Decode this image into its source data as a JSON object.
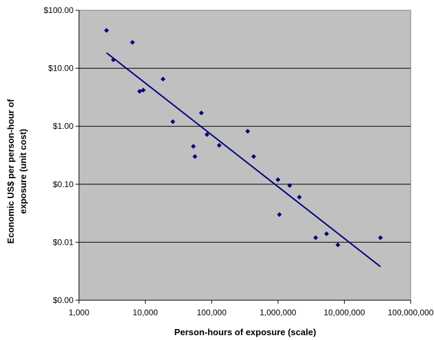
{
  "chart_data": {
    "type": "scatter",
    "xlabel": "Person-hours of exposure (scale)",
    "ylabel_line1": "Economic US$ per person-hour of",
    "ylabel_line2": "exposure (unit cost)",
    "x_scale": "log",
    "y_scale": "log",
    "xlim": [
      1000,
      100000000
    ],
    "ylim_labels_note": "bottom label reads $0.00 at the 0.001 level",
    "x_ticks": [
      "1,000",
      "10,000",
      "100,000",
      "1,000,000",
      "10,000,000",
      "100,000,000"
    ],
    "y_ticks": [
      "$0.00",
      "$0.01",
      "$0.10",
      "$1.00",
      "$10.00",
      "$100.00"
    ],
    "grid": "horizontal",
    "plot_background": "#c0c0c0",
    "point_color": "#000080",
    "line_color": "#000080",
    "points": [
      {
        "x": 2600,
        "y": 45
      },
      {
        "x": 3300,
        "y": 14
      },
      {
        "x": 6400,
        "y": 28
      },
      {
        "x": 8200,
        "y": 4.0
      },
      {
        "x": 9300,
        "y": 4.2
      },
      {
        "x": 18500,
        "y": 6.5
      },
      {
        "x": 26000,
        "y": 1.2
      },
      {
        "x": 53000,
        "y": 0.45
      },
      {
        "x": 56000,
        "y": 0.3
      },
      {
        "x": 70000,
        "y": 1.7
      },
      {
        "x": 85000,
        "y": 0.72
      },
      {
        "x": 130000,
        "y": 0.47
      },
      {
        "x": 350000,
        "y": 0.82
      },
      {
        "x": 430000,
        "y": 0.3
      },
      {
        "x": 1000000,
        "y": 0.12
      },
      {
        "x": 1050000,
        "y": 0.03
      },
      {
        "x": 1500000,
        "y": 0.095
      },
      {
        "x": 2100000,
        "y": 0.06
      },
      {
        "x": 3700000,
        "y": 0.012
      },
      {
        "x": 5400000,
        "y": 0.014
      },
      {
        "x": 8000000,
        "y": 0.009
      },
      {
        "x": 35000000,
        "y": 0.012
      }
    ],
    "trendline": [
      {
        "x": 2600,
        "y": 18.5
      },
      {
        "x": 35000000,
        "y": 0.0038
      }
    ]
  }
}
